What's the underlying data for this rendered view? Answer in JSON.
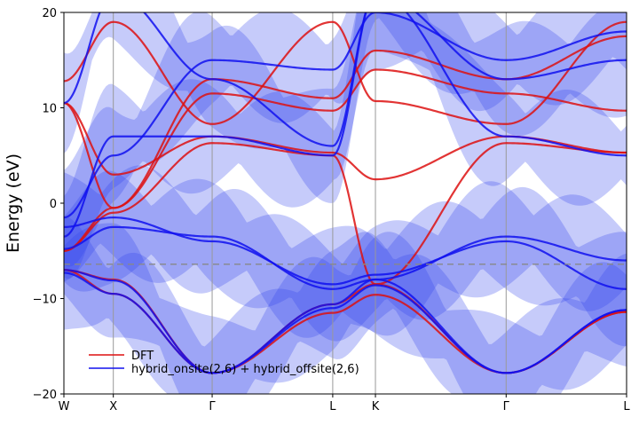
{
  "chart_data": {
    "type": "line",
    "title": "",
    "xlabel": "",
    "ylabel": "Energy (eV)",
    "ylim": [
      -20,
      20
    ],
    "yticks": [
      -20,
      -10,
      0,
      10,
      20
    ],
    "ytick_labels": [
      "−20",
      "−10",
      "0",
      "10",
      "20"
    ],
    "kpath": [
      {
        "label": "W",
        "x": 0.0
      },
      {
        "label": "X",
        "x": 0.707
      },
      {
        "label": "Γ",
        "x": 2.121
      },
      {
        "label": "L",
        "x": 3.846
      },
      {
        "label": "K",
        "x": 4.457
      },
      {
        "label": "Γ",
        "x": 6.327
      },
      {
        "label": "L",
        "x": 8.05
      }
    ],
    "fermi_level": -6.4,
    "grid": "vertical lines at high-symmetry points",
    "legend": {
      "placement": "lower-left",
      "entries": [
        {
          "label": "DFT",
          "color": "#dd1111"
        },
        {
          "label": "hybrid_onsite(2,6) + hybrid_offsite(2,6)",
          "color": "#1111ee"
        }
      ]
    },
    "series": [
      {
        "name": "DFT",
        "color": "#dd1111",
        "bands": [
          {
            "x": [
              0,
              0.707,
              2.121,
              3.846,
              4.457,
              6.327,
              8.05
            ],
            "y": [
              -7.0,
              -8.0,
              -17.8,
              -11.5,
              -9.6,
              -17.8,
              -11.4
            ]
          },
          {
            "x": [
              0,
              0.707,
              2.121,
              3.846,
              4.457,
              6.327,
              8.05
            ],
            "y": [
              -7.0,
              -9.5,
              -17.8,
              -10.6,
              -8.5,
              -17.8,
              -11.4
            ]
          },
          {
            "x": [
              0,
              0.707,
              2.121,
              3.846,
              4.457,
              6.327,
              8.05
            ],
            "y": [
              -5.0,
              -1.0,
              6.3,
              5.0,
              -8.5,
              6.3,
              5.3
            ]
          },
          {
            "x": [
              0,
              0.707,
              2.121,
              3.846,
              4.457,
              6.327,
              8.05
            ],
            "y": [
              10.5,
              3.0,
              7.0,
              5.3,
              2.5,
              7.0,
              5.3
            ]
          },
          {
            "x": [
              0,
              0.707,
              2.121,
              3.846,
              4.457,
              6.327,
              8.05
            ],
            "y": [
              12.8,
              19.0,
              8.3,
              19.0,
              10.7,
              8.3,
              19.0
            ]
          },
          {
            "x": [
              0,
              0.707,
              2.121,
              3.846,
              4.457,
              6.327,
              8.05
            ],
            "y": [
              10.5,
              -0.5,
              11.5,
              9.7,
              14.0,
              11.5,
              9.7
            ]
          },
          {
            "x": [
              0,
              0.707,
              2.121,
              3.846,
              4.457,
              6.327,
              8.05
            ],
            "y": [
              -5.0,
              -0.5,
              13.0,
              11.0,
              16.0,
              13.0,
              17.5
            ]
          }
        ]
      },
      {
        "name": "hybrid_onsite(2,6) + hybrid_offsite(2,6)",
        "color": "#1111ee",
        "bands": [
          {
            "x": [
              0,
              0.707,
              2.121,
              3.846,
              4.457,
              6.327,
              8.05
            ],
            "y": [
              -7.0,
              -8.1,
              -17.8,
              -11.0,
              -8.6,
              -17.8,
              -11.2
            ]
          },
          {
            "x": [
              0,
              0.707,
              2.121,
              3.846,
              4.457,
              6.327,
              8.05
            ],
            "y": [
              -7.3,
              -9.5,
              -17.8,
              -10.6,
              -8.0,
              -17.8,
              -11.2
            ]
          },
          {
            "x": [
              0,
              0.707,
              2.121,
              3.846,
              4.457,
              6.327,
              8.05
            ],
            "y": [
              -4.8,
              -2.5,
              -3.5,
              -9.0,
              -8.0,
              -3.5,
              -6.0
            ]
          },
          {
            "x": [
              0,
              0.707,
              2.121,
              3.846,
              4.457,
              6.327,
              8.05
            ],
            "y": [
              -2.5,
              -1.5,
              -4.0,
              -8.5,
              -7.5,
              -4.0,
              -9.0
            ]
          },
          {
            "x": [
              0,
              0.707,
              2.121,
              3.846,
              4.457,
              6.327,
              8.05
            ],
            "y": [
              -3.5,
              7.0,
              7.0,
              5.0,
              22.0,
              7.0,
              5.0
            ]
          },
          {
            "x": [
              0,
              0.707,
              2.121,
              3.846,
              4.457,
              6.327,
              8.05
            ],
            "y": [
              10.5,
              22.0,
              13.0,
              6.0,
              22.0,
              13.0,
              15.0
            ]
          },
          {
            "x": [
              0,
              0.707,
              2.121,
              3.846,
              4.457,
              6.327,
              8.05
            ],
            "y": [
              -1.5,
              5.0,
              15.0,
              14.0,
              20.0,
              15.0,
              18.0
            ]
          }
        ]
      }
    ],
    "uncertainty_band_color": "#3344ee"
  }
}
